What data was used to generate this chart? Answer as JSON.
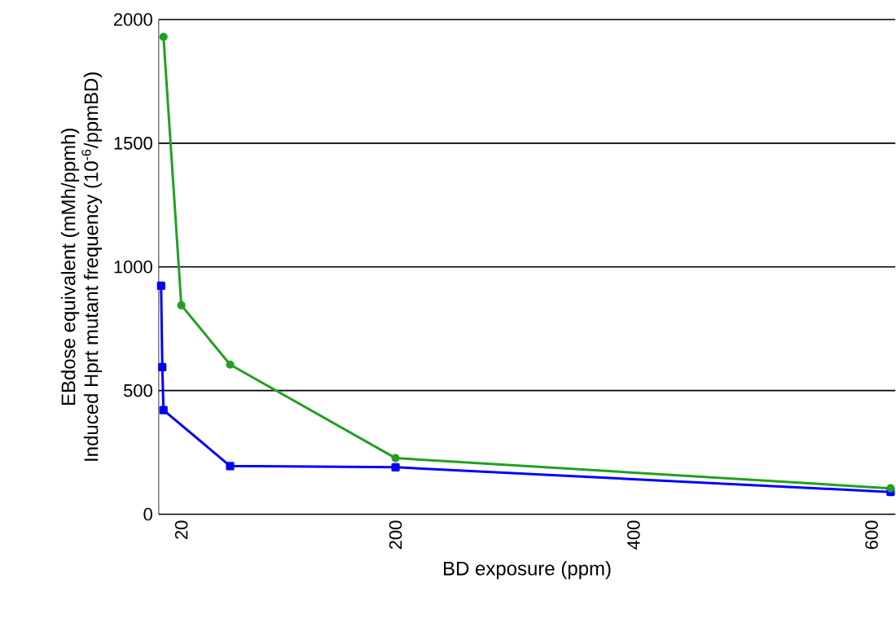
{
  "chart_data": {
    "type": "line",
    "xlabel": "BD exposure (ppm)",
    "ylabel": [
      "EBdose equivalent (mMh/ppmh)",
      "Induced Hprt mutant frequency (10$^{-6}$/ppmBD)"
    ],
    "xlim": [
      1,
      620
    ],
    "xticks": [
      20,
      200,
      400,
      600
    ],
    "ylim": [
      0,
      2000
    ],
    "yticks": [
      0,
      500,
      1000,
      1500,
      2000
    ],
    "grid": "y",
    "series": [
      {
        "color": "#22a022",
        "marker": "circle",
        "x": [
          5,
          20,
          61,
          200,
          616
        ],
        "values": [
          1930,
          845,
          605,
          227,
          105
        ]
      },
      {
        "color": "#0000ff",
        "marker": "square",
        "x": [
          3,
          4,
          5,
          61,
          200,
          616
        ],
        "values": [
          924,
          595,
          421,
          195,
          190,
          90
        ]
      }
    ]
  }
}
